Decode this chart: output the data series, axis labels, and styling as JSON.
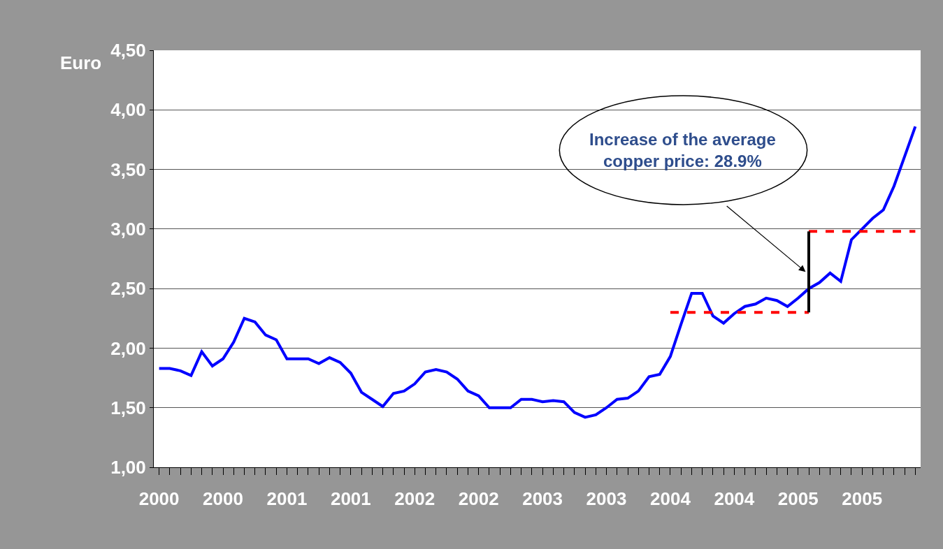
{
  "chart_data": {
    "type": "line",
    "ylabel": "Euro",
    "categories": [
      "2000",
      null,
      null,
      null,
      null,
      null,
      "2000",
      null,
      null,
      null,
      null,
      null,
      "2001",
      null,
      null,
      null,
      null,
      null,
      "2001",
      null,
      null,
      null,
      null,
      null,
      "2002",
      null,
      null,
      null,
      null,
      null,
      "2002",
      null,
      null,
      null,
      null,
      null,
      "2003",
      null,
      null,
      null,
      null,
      null,
      "2003",
      null,
      null,
      null,
      null,
      null,
      "2004",
      null,
      null,
      null,
      null,
      null,
      "2004",
      null,
      null,
      null,
      null,
      null,
      "2005",
      null,
      null,
      null,
      null,
      null,
      "2005",
      null,
      null,
      null,
      null,
      null
    ],
    "series": [
      {
        "color": "#0000ff",
        "values": [
          1.83,
          1.83,
          1.81,
          1.77,
          1.97,
          1.85,
          1.91,
          2.05,
          2.25,
          2.22,
          2.11,
          2.07,
          1.91,
          1.91,
          1.91,
          1.87,
          1.92,
          1.88,
          1.79,
          1.63,
          1.57,
          1.51,
          1.62,
          1.64,
          1.7,
          1.8,
          1.82,
          1.8,
          1.74,
          1.64,
          1.6,
          1.5,
          1.5,
          1.5,
          1.57,
          1.57,
          1.55,
          1.56,
          1.55,
          1.46,
          1.42,
          1.44,
          1.5,
          1.57,
          1.58,
          1.64,
          1.76,
          1.78,
          1.93,
          2.2,
          2.46,
          2.46,
          2.27,
          2.21,
          2.29,
          2.35,
          2.37,
          2.42,
          2.4,
          2.35,
          2.42,
          2.5,
          2.55,
          2.63,
          2.56,
          2.91,
          3.0,
          3.09,
          3.16,
          3.36,
          3.61,
          3.86
        ]
      },
      {
        "color": "#ff0000",
        "line_style": "dashed",
        "values": [
          null,
          null,
          null,
          null,
          null,
          null,
          null,
          null,
          null,
          null,
          null,
          null,
          null,
          null,
          null,
          null,
          null,
          null,
          null,
          null,
          null,
          null,
          null,
          null,
          null,
          null,
          null,
          null,
          null,
          null,
          null,
          null,
          null,
          null,
          null,
          null,
          null,
          null,
          null,
          null,
          null,
          null,
          null,
          null,
          null,
          null,
          null,
          null,
          2.3,
          2.3,
          2.3,
          2.3,
          2.3,
          2.3,
          2.3,
          2.3,
          2.3,
          2.3,
          2.3,
          2.3,
          2.3,
          2.3,
          null,
          null,
          null,
          null,
          null,
          null,
          null,
          null,
          null,
          null
        ]
      },
      {
        "color": "#ff0000",
        "line_style": "dashed",
        "values": [
          null,
          null,
          null,
          null,
          null,
          null,
          null,
          null,
          null,
          null,
          null,
          null,
          null,
          null,
          null,
          null,
          null,
          null,
          null,
          null,
          null,
          null,
          null,
          null,
          null,
          null,
          null,
          null,
          null,
          null,
          null,
          null,
          null,
          null,
          null,
          null,
          null,
          null,
          null,
          null,
          null,
          null,
          null,
          null,
          null,
          null,
          null,
          null,
          null,
          null,
          null,
          null,
          null,
          null,
          null,
          null,
          null,
          null,
          null,
          null,
          null,
          2.98,
          2.98,
          2.98,
          2.98,
          2.98,
          2.98,
          2.98,
          2.98,
          2.98,
          2.98,
          2.98
        ]
      }
    ],
    "ylim": [
      1.0,
      4.5
    ],
    "yticks": [
      {
        "value": 1.0,
        "label": "1,00"
      },
      {
        "value": 1.5,
        "label": "1,50"
      },
      {
        "value": 2.0,
        "label": "2,00"
      },
      {
        "value": 2.5,
        "label": "2,50"
      },
      {
        "value": 3.0,
        "label": "3,00"
      },
      {
        "value": 3.5,
        "label": "3,50"
      },
      {
        "value": 4.0,
        "label": "4,00"
      },
      {
        "value": 4.5,
        "label": "4,50"
      }
    ],
    "grid": "y",
    "marker": "none",
    "line_style": "solid",
    "annotations": [
      "Increase of the average copper price: 28.9%"
    ]
  }
}
